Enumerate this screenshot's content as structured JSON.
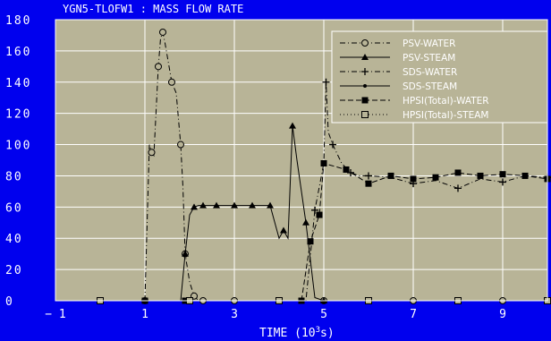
{
  "chart_data": {
    "type": "line",
    "title": "YGN5-TLOFW1 :   MASS FLOW RATE",
    "xlabel": "TIME  (10",
    "xlabel_sup": "3",
    "xlabel_end": "s)",
    "xlim": [
      -1,
      10
    ],
    "ylim": [
      0,
      180
    ],
    "x_ticks": [
      -1,
      1,
      3,
      5,
      7,
      9
    ],
    "y_ticks": [
      0,
      20,
      40,
      60,
      80,
      100,
      120,
      140,
      160,
      180
    ],
    "grid": true,
    "legend_position": "top-right",
    "colors": {
      "plot_background": "#b8b497",
      "frame": "#0000ee",
      "grid": "#ffffff",
      "series": "#000000"
    },
    "series": [
      {
        "name": "PSV-WATER",
        "style": "dash-dot",
        "marker": "open-circle",
        "x": [
          1.0,
          1.1,
          1.15,
          1.2,
          1.3,
          1.35,
          1.4,
          1.45,
          1.6,
          1.7,
          1.8,
          1.85,
          1.9,
          2.0,
          2.1,
          2.2,
          2.3,
          2.5,
          3.0,
          3.5,
          4.0,
          4.5,
          5.0,
          6.0,
          7.0,
          8.0,
          9.0,
          10.0
        ],
        "y": [
          0,
          100,
          95,
          93,
          150,
          168,
          172,
          165,
          140,
          133,
          100,
          73,
          30,
          12,
          3,
          0,
          0,
          0,
          0,
          0,
          0,
          0,
          0,
          0,
          0,
          0,
          0,
          0
        ]
      },
      {
        "name": "PSV-STEAM",
        "style": "solid",
        "marker": "filled-triangle",
        "x": [
          0.0,
          1.8,
          1.9,
          2.0,
          2.1,
          2.2,
          2.3,
          2.4,
          2.6,
          2.8,
          3.0,
          3.2,
          3.4,
          3.6,
          3.8,
          4.0,
          4.1,
          4.2,
          4.3,
          4.4,
          4.6,
          4.8,
          5.0,
          6.0,
          8.0,
          10.0
        ],
        "y": [
          0,
          0,
          30,
          55,
          60,
          61,
          61,
          61,
          61,
          61,
          61,
          61,
          61,
          61,
          61,
          40,
          45,
          40,
          112,
          90,
          50,
          2,
          0,
          0,
          0,
          0
        ]
      },
      {
        "name": "SDS-WATER",
        "style": "dash-dot",
        "marker": "plus",
        "x": [
          0.0,
          4.6,
          4.8,
          5.0,
          5.05,
          5.1,
          5.2,
          5.4,
          5.6,
          5.8,
          6.0,
          6.5,
          7.0,
          7.5,
          8.0,
          8.5,
          9.0,
          9.5,
          10.0
        ],
        "y": [
          0,
          0,
          58,
          88,
          140,
          108,
          100,
          88,
          82,
          80,
          80,
          79,
          75,
          77,
          72,
          78,
          76,
          80,
          79
        ]
      },
      {
        "name": "SDS-STEAM",
        "style": "solid",
        "marker": "filled-dot",
        "x": [
          0.0,
          1.0,
          2.0,
          3.0,
          4.0,
          5.0,
          6.0,
          7.0,
          8.0,
          9.0,
          10.0
        ],
        "y": [
          0,
          0,
          0,
          0,
          0,
          0,
          0,
          0,
          0,
          0,
          0
        ]
      },
      {
        "name": "HPSI(Total)-WATER",
        "style": "dashed",
        "marker": "filled-square",
        "x": [
          0.0,
          1.0,
          1.9,
          2.0,
          4.5,
          4.7,
          4.9,
          5.0,
          5.5,
          6.0,
          6.5,
          7.0,
          7.5,
          8.0,
          8.5,
          9.0,
          9.5,
          10.0
        ],
        "y": [
          0,
          0,
          0,
          0,
          0,
          38,
          55,
          88,
          84,
          75,
          80,
          78,
          79,
          82,
          80,
          81,
          80,
          78
        ]
      },
      {
        "name": "HPSI(Total)-STEAM",
        "style": "dotted",
        "marker": "open-square",
        "x": [
          0.0,
          1.0,
          2.0,
          3.0,
          4.0,
          5.0,
          6.0,
          7.0,
          8.0,
          9.0,
          10.0
        ],
        "y": [
          0,
          0,
          0,
          0,
          0,
          0,
          0,
          0,
          0,
          0,
          0
        ]
      }
    ]
  }
}
